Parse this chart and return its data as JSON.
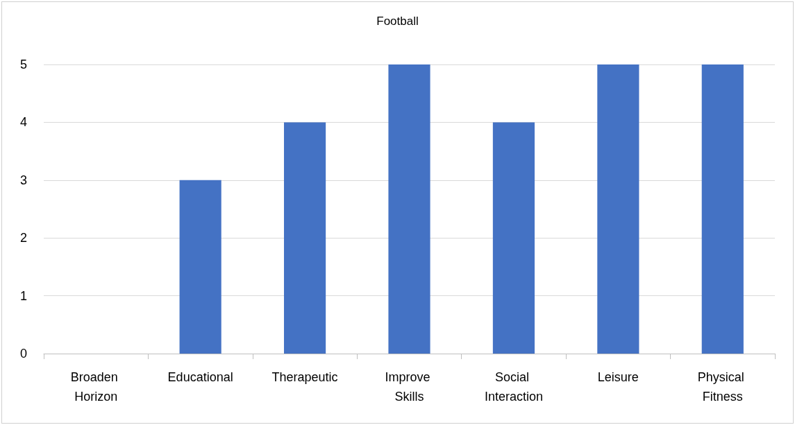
{
  "chart_data": {
    "type": "bar",
    "title": "Football",
    "categories": [
      "Broaden Horizon",
      "Educational",
      "Therapeutic",
      "Improve Skills",
      "Social Interaction",
      "Leisure",
      "Physical Fitness"
    ],
    "values": [
      0,
      3,
      4,
      5,
      4,
      5,
      5
    ],
    "color": "#4472c4",
    "ylim": [
      0,
      5
    ],
    "yticks": [
      0,
      1,
      2,
      3,
      4,
      5
    ],
    "grid": "y"
  }
}
